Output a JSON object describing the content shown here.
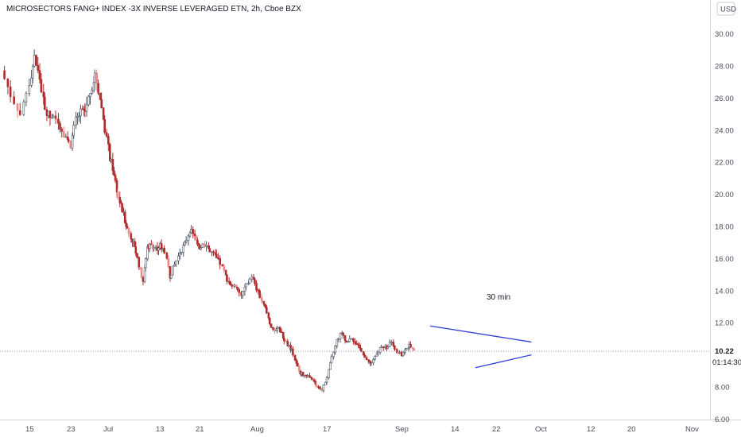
{
  "chart_data": {
    "type": "candlestick",
    "title": "MICROSECTORS FANG+ INDEX -3X INVERSE LEVERAGED ETN, 2h, Cboe BZX",
    "currency": "USD",
    "last_price": "10.22",
    "countdown": "01:14:30",
    "annotation": "30 min",
    "yticks": [
      "30.00",
      "28.00",
      "26.00",
      "24.00",
      "22.00",
      "20.00",
      "18.00",
      "16.00",
      "14.00",
      "12.00",
      "8.00",
      "6.00"
    ],
    "ylim": [
      5.5,
      31
    ],
    "xticks": [
      "15",
      "23",
      "Jul",
      "13",
      "21",
      "Aug",
      "17",
      "Sep",
      "14",
      "22",
      "Oct",
      "12",
      "20",
      "Nov"
    ],
    "price_path": [
      [
        "Jun 12",
        27.7
      ],
      [
        "Jun 13",
        26.2
      ],
      [
        "Jun 14",
        25.0
      ],
      [
        "Jun 15",
        27.0
      ],
      [
        "Jun 16",
        28.5
      ],
      [
        "Jun 17",
        27.2
      ],
      [
        "Jun 18",
        25.2
      ],
      [
        "Jun 19",
        24.8
      ],
      [
        "Jun 20",
        24.6
      ],
      [
        "Jun 21",
        24.3
      ],
      [
        "Jun 22",
        23.6
      ],
      [
        "Jun 23",
        23.1
      ],
      [
        "Jun 24",
        24.6
      ],
      [
        "Jun 25",
        25.1
      ],
      [
        "Jun 26",
        25.2
      ],
      [
        "Jun 27",
        26.4
      ],
      [
        "Jun 28",
        27.5
      ],
      [
        "Jun 29",
        26.0
      ],
      [
        "Jun 30",
        24.1
      ],
      [
        "Jul 1",
        22.3
      ],
      [
        "Jul 2",
        21.3
      ],
      [
        "Jul 3",
        19.8
      ],
      [
        "Jul 4",
        19.0
      ],
      [
        "Jul 5",
        18.1
      ],
      [
        "Jul 6",
        17.3
      ],
      [
        "Jul 7",
        16.8
      ],
      [
        "Jul 8",
        15.6
      ],
      [
        "Jul 9",
        14.6
      ],
      [
        "Jul 10",
        16.7
      ],
      [
        "Jul 11",
        16.9
      ],
      [
        "Jul 12",
        16.6
      ],
      [
        "Jul 13",
        16.8
      ],
      [
        "Jul 14",
        16.5
      ],
      [
        "Jul 15",
        14.9
      ],
      [
        "Jul 16",
        15.6
      ],
      [
        "Jul 17",
        16.4
      ],
      [
        "Jul 18",
        16.9
      ],
      [
        "Jul 19",
        17.8
      ],
      [
        "Jul 20",
        17.3
      ],
      [
        "Jul 21",
        16.7
      ],
      [
        "Jul 22",
        16.9
      ],
      [
        "Jul 23",
        16.5
      ],
      [
        "Jul 24",
        16.1
      ],
      [
        "Jul 25",
        15.7
      ],
      [
        "Jul 26",
        14.9
      ],
      [
        "Jul 27",
        14.4
      ],
      [
        "Jul 28",
        14.1
      ],
      [
        "Jul 29",
        13.7
      ],
      [
        "Jul 30",
        14.3
      ],
      [
        "Jul 31",
        14.9
      ],
      [
        "Aug 1",
        14.1
      ],
      [
        "Aug 2",
        13.4
      ],
      [
        "Aug 3",
        12.9
      ],
      [
        "Aug 4",
        12.0
      ],
      [
        "Aug 5",
        11.4
      ],
      [
        "Aug 6",
        11.7
      ],
      [
        "Aug 7",
        11.1
      ],
      [
        "Aug 8",
        10.6
      ],
      [
        "Aug 9",
        10.3
      ],
      [
        "Aug 10",
        9.4
      ],
      [
        "Aug 11",
        8.9
      ],
      [
        "Aug 12",
        8.7
      ],
      [
        "Aug 13",
        8.6
      ],
      [
        "Aug 14",
        8.3
      ],
      [
        "Aug 15",
        8.0
      ],
      [
        "Aug 16",
        7.8
      ],
      [
        "Aug 17",
        8.6
      ],
      [
        "Aug 18",
        9.8
      ],
      [
        "Aug 19",
        10.9
      ],
      [
        "Aug 20",
        11.4
      ],
      [
        "Aug 21",
        10.8
      ],
      [
        "Aug 22",
        11.1
      ],
      [
        "Aug 23",
        10.6
      ],
      [
        "Aug 24",
        10.3
      ],
      [
        "Aug 25",
        9.6
      ],
      [
        "Aug 26",
        9.5
      ],
      [
        "Aug 27",
        10.0
      ],
      [
        "Aug 28",
        10.6
      ],
      [
        "Aug 29",
        10.4
      ],
      [
        "Aug 30",
        10.9
      ],
      [
        "Aug 31",
        10.2
      ],
      [
        "Sep 1",
        10.0
      ],
      [
        "Sep 2",
        10.4
      ],
      [
        "Sep 3",
        10.6
      ],
      [
        "Sep 4",
        10.22
      ]
    ],
    "grid": false,
    "trendlines": [
      {
        "from": [
          "Sep 8",
          11.8
        ],
        "to": [
          "Sep 29",
          10.8
        ],
        "color": "#2e3ed6"
      },
      {
        "from": [
          "Sep 18",
          9.2
        ],
        "to": [
          "Sep 29",
          10.0
        ],
        "color": "#2e3ed6"
      }
    ],
    "reference_line": 10.22,
    "colors": {
      "up": "#4b5563",
      "down": "#b02c2c",
      "down_light": "#f08a8a",
      "trend": "#2e3ed6"
    }
  }
}
